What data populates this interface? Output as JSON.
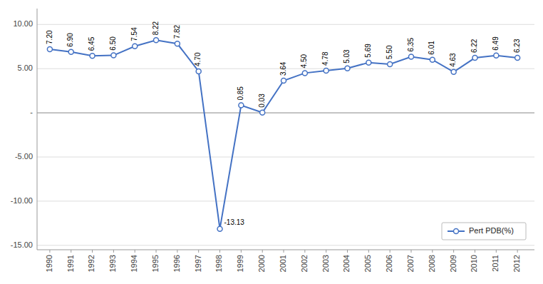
{
  "chart_data": {
    "type": "line",
    "x": [
      1990,
      1991,
      1992,
      1993,
      1994,
      1995,
      1996,
      1997,
      1998,
      1999,
      2000,
      2001,
      2002,
      2003,
      2004,
      2005,
      2006,
      2007,
      2008,
      2009,
      2010,
      2011,
      2012
    ],
    "series": [
      {
        "name": "Pert PDB(%)",
        "color": "#4472C4",
        "marker": "circle",
        "values": [
          7.2,
          6.9,
          6.45,
          6.5,
          7.54,
          8.22,
          7.82,
          4.7,
          -13.13,
          0.85,
          0.03,
          3.64,
          4.5,
          4.78,
          5.03,
          5.69,
          5.5,
          6.35,
          6.01,
          4.63,
          6.22,
          6.49,
          6.23
        ],
        "value_labels": [
          "7.20",
          "6.90",
          "6.45",
          "6.50",
          "7.54",
          "8.22",
          "7.82",
          "4.70",
          "-13.13",
          "0.85",
          "0.03",
          "3.64",
          "4.50",
          "4.78",
          "5.03",
          "5.69",
          "5.50",
          "6.35",
          "6.01",
          "4.63",
          "6.22",
          "6.49",
          "6.23"
        ]
      }
    ],
    "xlim": [
      1989.4,
      2012.8
    ],
    "xticks": [
      1990,
      1991,
      1992,
      1993,
      1994,
      1995,
      1996,
      1997,
      1998,
      1999,
      2000,
      2001,
      2002,
      2003,
      2004,
      2005,
      2006,
      2007,
      2008,
      2009,
      2010,
      2011,
      2012
    ],
    "ylim": [
      -15.5,
      11.8
    ],
    "yticks": [
      {
        "value": -15.0,
        "label": "-15.00"
      },
      {
        "value": -10.0,
        "label": "-10.00"
      },
      {
        "value": -5.0,
        "label": "-5.00"
      },
      {
        "value": 0.0,
        "label": "-"
      },
      {
        "value": 5.0,
        "label": "5.00"
      },
      {
        "value": 10.0,
        "label": "10.00"
      }
    ],
    "grid": true,
    "legend": "lower right",
    "data_labels": true
  }
}
